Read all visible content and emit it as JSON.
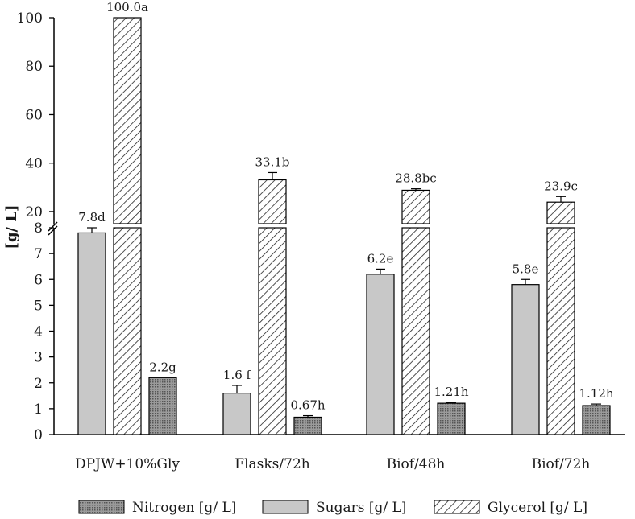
{
  "chart_data": {
    "type": "bar",
    "title": "",
    "xlabel": "",
    "ylabel": "[g/ L]",
    "categories": [
      "DPJW+10%Gly",
      "Flasks/72h",
      "Biof/48h",
      "Biof/72h"
    ],
    "series": [
      {
        "name": "Sugars [g/ L]",
        "pattern": "solid",
        "color": "#c8c8c8",
        "values": [
          7.8,
          1.6,
          6.2,
          5.8
        ],
        "errors": [
          0.2,
          0.3,
          0.2,
          0.2
        ],
        "labels": [
          "7.8d",
          "1.6 f",
          "6.2e",
          "5.8e"
        ]
      },
      {
        "name": "Glycerol [g/ L]",
        "pattern": "hatch",
        "color": "#ffffff",
        "values": [
          100.0,
          33.1,
          28.8,
          23.9
        ],
        "errors": [
          0,
          3.0,
          0.6,
          2.3
        ],
        "labels": [
          "100.0a",
          "33.1b",
          "28.8bc",
          "23.9c"
        ]
      },
      {
        "name": "Nitrogen [g/ L]",
        "pattern": "dotted",
        "color": "#8c8c8c",
        "values": [
          2.2,
          0.67,
          1.21,
          1.12
        ],
        "errors": [
          0,
          0.06,
          0.03,
          0.06
        ],
        "labels": [
          "2.2g",
          "0.67h",
          "1.21h",
          "1.12h"
        ]
      }
    ],
    "y_axis_broken": true,
    "y_lower_range": [
      0,
      8
    ],
    "y_upper_range": [
      15,
      100
    ],
    "y_lower_ticks": [
      "0",
      "1",
      "2",
      "3",
      "4",
      "5",
      "6",
      "7",
      "8"
    ],
    "y_upper_ticks": [
      "20",
      "40",
      "60",
      "80",
      "100"
    ],
    "legend": {
      "position": "bottom",
      "order": [
        "Nitrogen [g/ L]",
        "Sugars [g/ L]",
        "Glycerol [g/ L]"
      ]
    }
  }
}
